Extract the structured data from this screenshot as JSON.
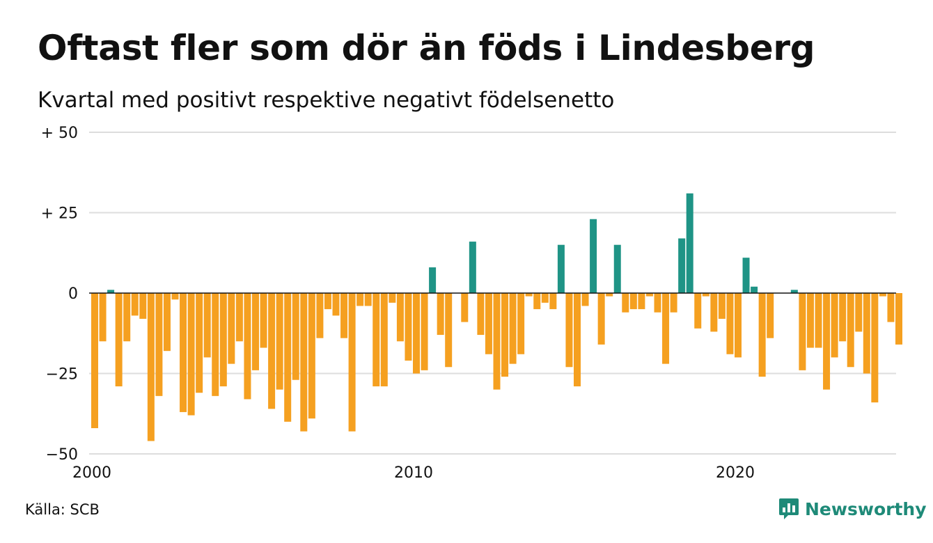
{
  "header": {
    "title": "Oftast fler som dör än föds i Lindesberg",
    "subtitle": "Kvartal med positivt respektive negativt födelsenetto"
  },
  "footer": {
    "source": "Källa: SCB",
    "brand": "Newsworthy",
    "brand_icon": "newsworthy-logo-icon"
  },
  "colors": {
    "positive": "#1f9486",
    "negative": "#f5a020",
    "grid": "#dddddd",
    "zero_line": "#111111",
    "brand": "#1e8a78"
  },
  "chart_data": {
    "type": "bar",
    "title": "Oftast fler som dör än föds i Lindesberg",
    "subtitle": "Kvartal med positivt respektive negativt födelsenetto",
    "xlabel": "",
    "ylabel": "",
    "ylim": [
      -50,
      50
    ],
    "y_ticks": [
      {
        "value": 50,
        "label": "+ 50"
      },
      {
        "value": 25,
        "label": "+ 25"
      },
      {
        "value": 0,
        "label": "0"
      },
      {
        "value": -25,
        "label": "−25"
      },
      {
        "value": -50,
        "label": "−50"
      }
    ],
    "x_ticks": [
      {
        "value": 2000,
        "label": "2000"
      },
      {
        "value": 2010,
        "label": "2010"
      },
      {
        "value": 2020,
        "label": "2020"
      }
    ],
    "grid": true,
    "legend": "none",
    "start_year": 2000,
    "periods_per_year": 4,
    "values": [
      -42,
      -15,
      1,
      -29,
      -15,
      -7,
      -8,
      -46,
      -32,
      -18,
      -2,
      -37,
      -38,
      -31,
      -20,
      -32,
      -29,
      -22,
      -15,
      -33,
      -24,
      -17,
      -36,
      -30,
      -40,
      -27,
      -43,
      -39,
      -14,
      -5,
      -7,
      -14,
      -43,
      -4,
      -4,
      -29,
      -29,
      -3,
      -15,
      -21,
      -25,
      -24,
      8,
      -13,
      -23,
      0,
      -9,
      16,
      -13,
      -19,
      -30,
      -26,
      -22,
      -19,
      -1,
      -5,
      -3,
      -5,
      15,
      -23,
      -29,
      -4,
      23,
      -16,
      -1,
      15,
      -6,
      -5,
      -5,
      -1,
      -6,
      -22,
      -6,
      17,
      31,
      -11,
      -1,
      -12,
      -8,
      -19,
      -20,
      11,
      2,
      -26,
      -14,
      0,
      0,
      1,
      -24,
      -17,
      -17,
      -30,
      -20,
      -15,
      -23,
      -12,
      -25,
      -34,
      -1,
      -9,
      -16
    ]
  }
}
